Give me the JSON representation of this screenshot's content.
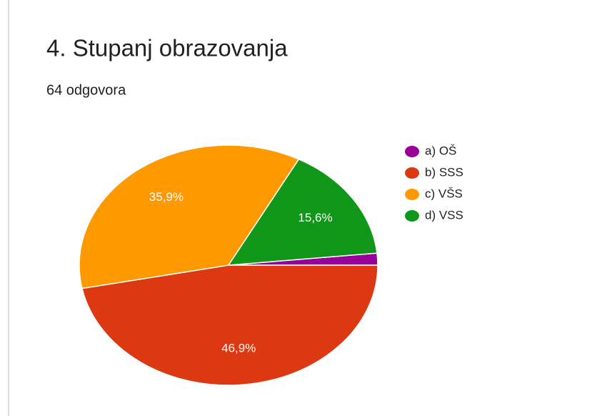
{
  "chart_data": {
    "type": "pie",
    "title": "4. Stupanj obrazovanja",
    "subtitle": "64 odgovora",
    "categories": [
      "a) OŠ",
      "b) SSS",
      "c) VŠS",
      "d) VSS"
    ],
    "values": [
      1.6,
      46.9,
      35.9,
      15.6
    ],
    "value_labels": [
      null,
      "46,9%",
      "35,9%",
      "15,6%"
    ],
    "colors": [
      "#990099",
      "#dc3912",
      "#ff9900",
      "#109618"
    ]
  }
}
